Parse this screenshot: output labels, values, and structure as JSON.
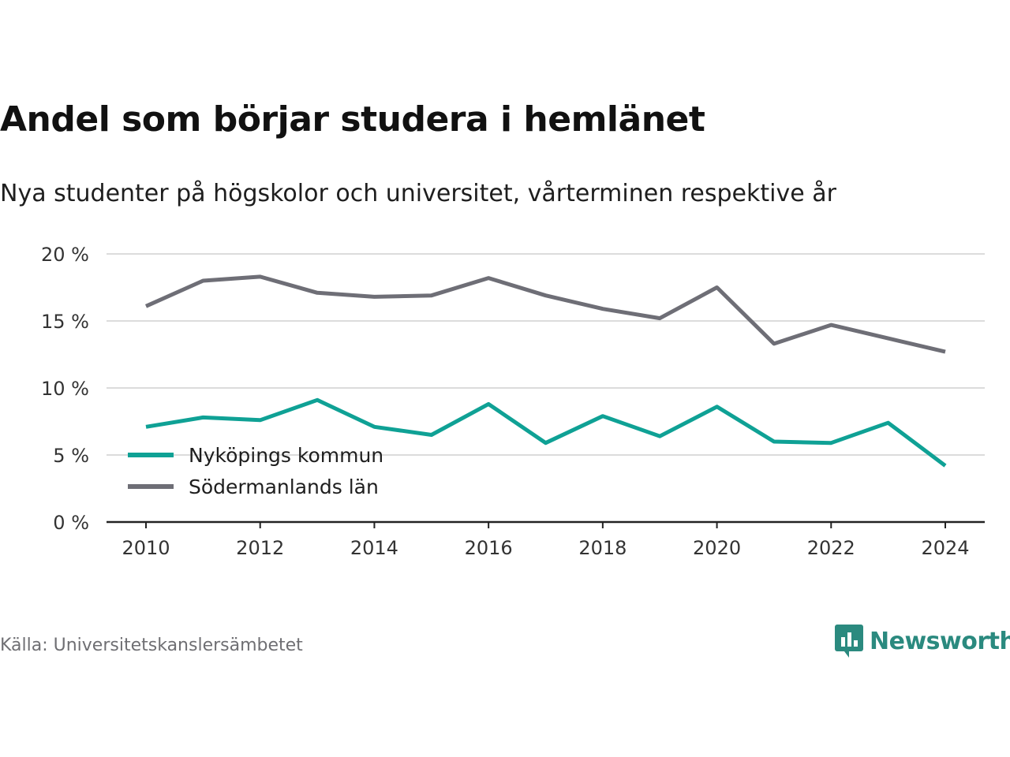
{
  "title": "Andel som börjar studera i hemlänet",
  "subtitle": "Nya studenter på högskolor och universitet, vårterminen respektive år",
  "source": "Källa: Universitetskanslersämbetet",
  "brand": {
    "name": "Newsworthy",
    "icon": "newsworthy-logo-icon",
    "color": "#2b8a7f"
  },
  "chart_data": {
    "type": "line",
    "title": "Andel som börjar studera i hemlänet",
    "subtitle": "Nya studenter på högskolor och universitet, vårterminen respektive år",
    "x": [
      2010,
      2011,
      2012,
      2013,
      2014,
      2015,
      2016,
      2017,
      2018,
      2019,
      2020,
      2021,
      2022,
      2023,
      2024
    ],
    "x_ticks": [
      "2010",
      "2012",
      "2014",
      "2016",
      "2018",
      "2020",
      "2022",
      "2024"
    ],
    "y_ticks": [
      "0 %",
      "5 %",
      "10 %",
      "15 %",
      "20 %"
    ],
    "ylim": [
      0,
      20
    ],
    "grid": true,
    "legend_position": "bottom-left",
    "series": [
      {
        "name": "Nyköpings kommun",
        "color": "#0fa195",
        "values": [
          7.1,
          7.8,
          7.6,
          9.1,
          7.1,
          6.5,
          8.8,
          5.9,
          7.9,
          6.4,
          8.6,
          6.0,
          5.9,
          7.4,
          4.2
        ]
      },
      {
        "name": "Södermanlands län",
        "color": "#6e6e76",
        "values": [
          16.1,
          18.0,
          18.3,
          17.1,
          16.8,
          16.9,
          18.2,
          16.9,
          15.9,
          15.2,
          17.5,
          13.3,
          14.7,
          13.7,
          12.7
        ]
      }
    ]
  }
}
